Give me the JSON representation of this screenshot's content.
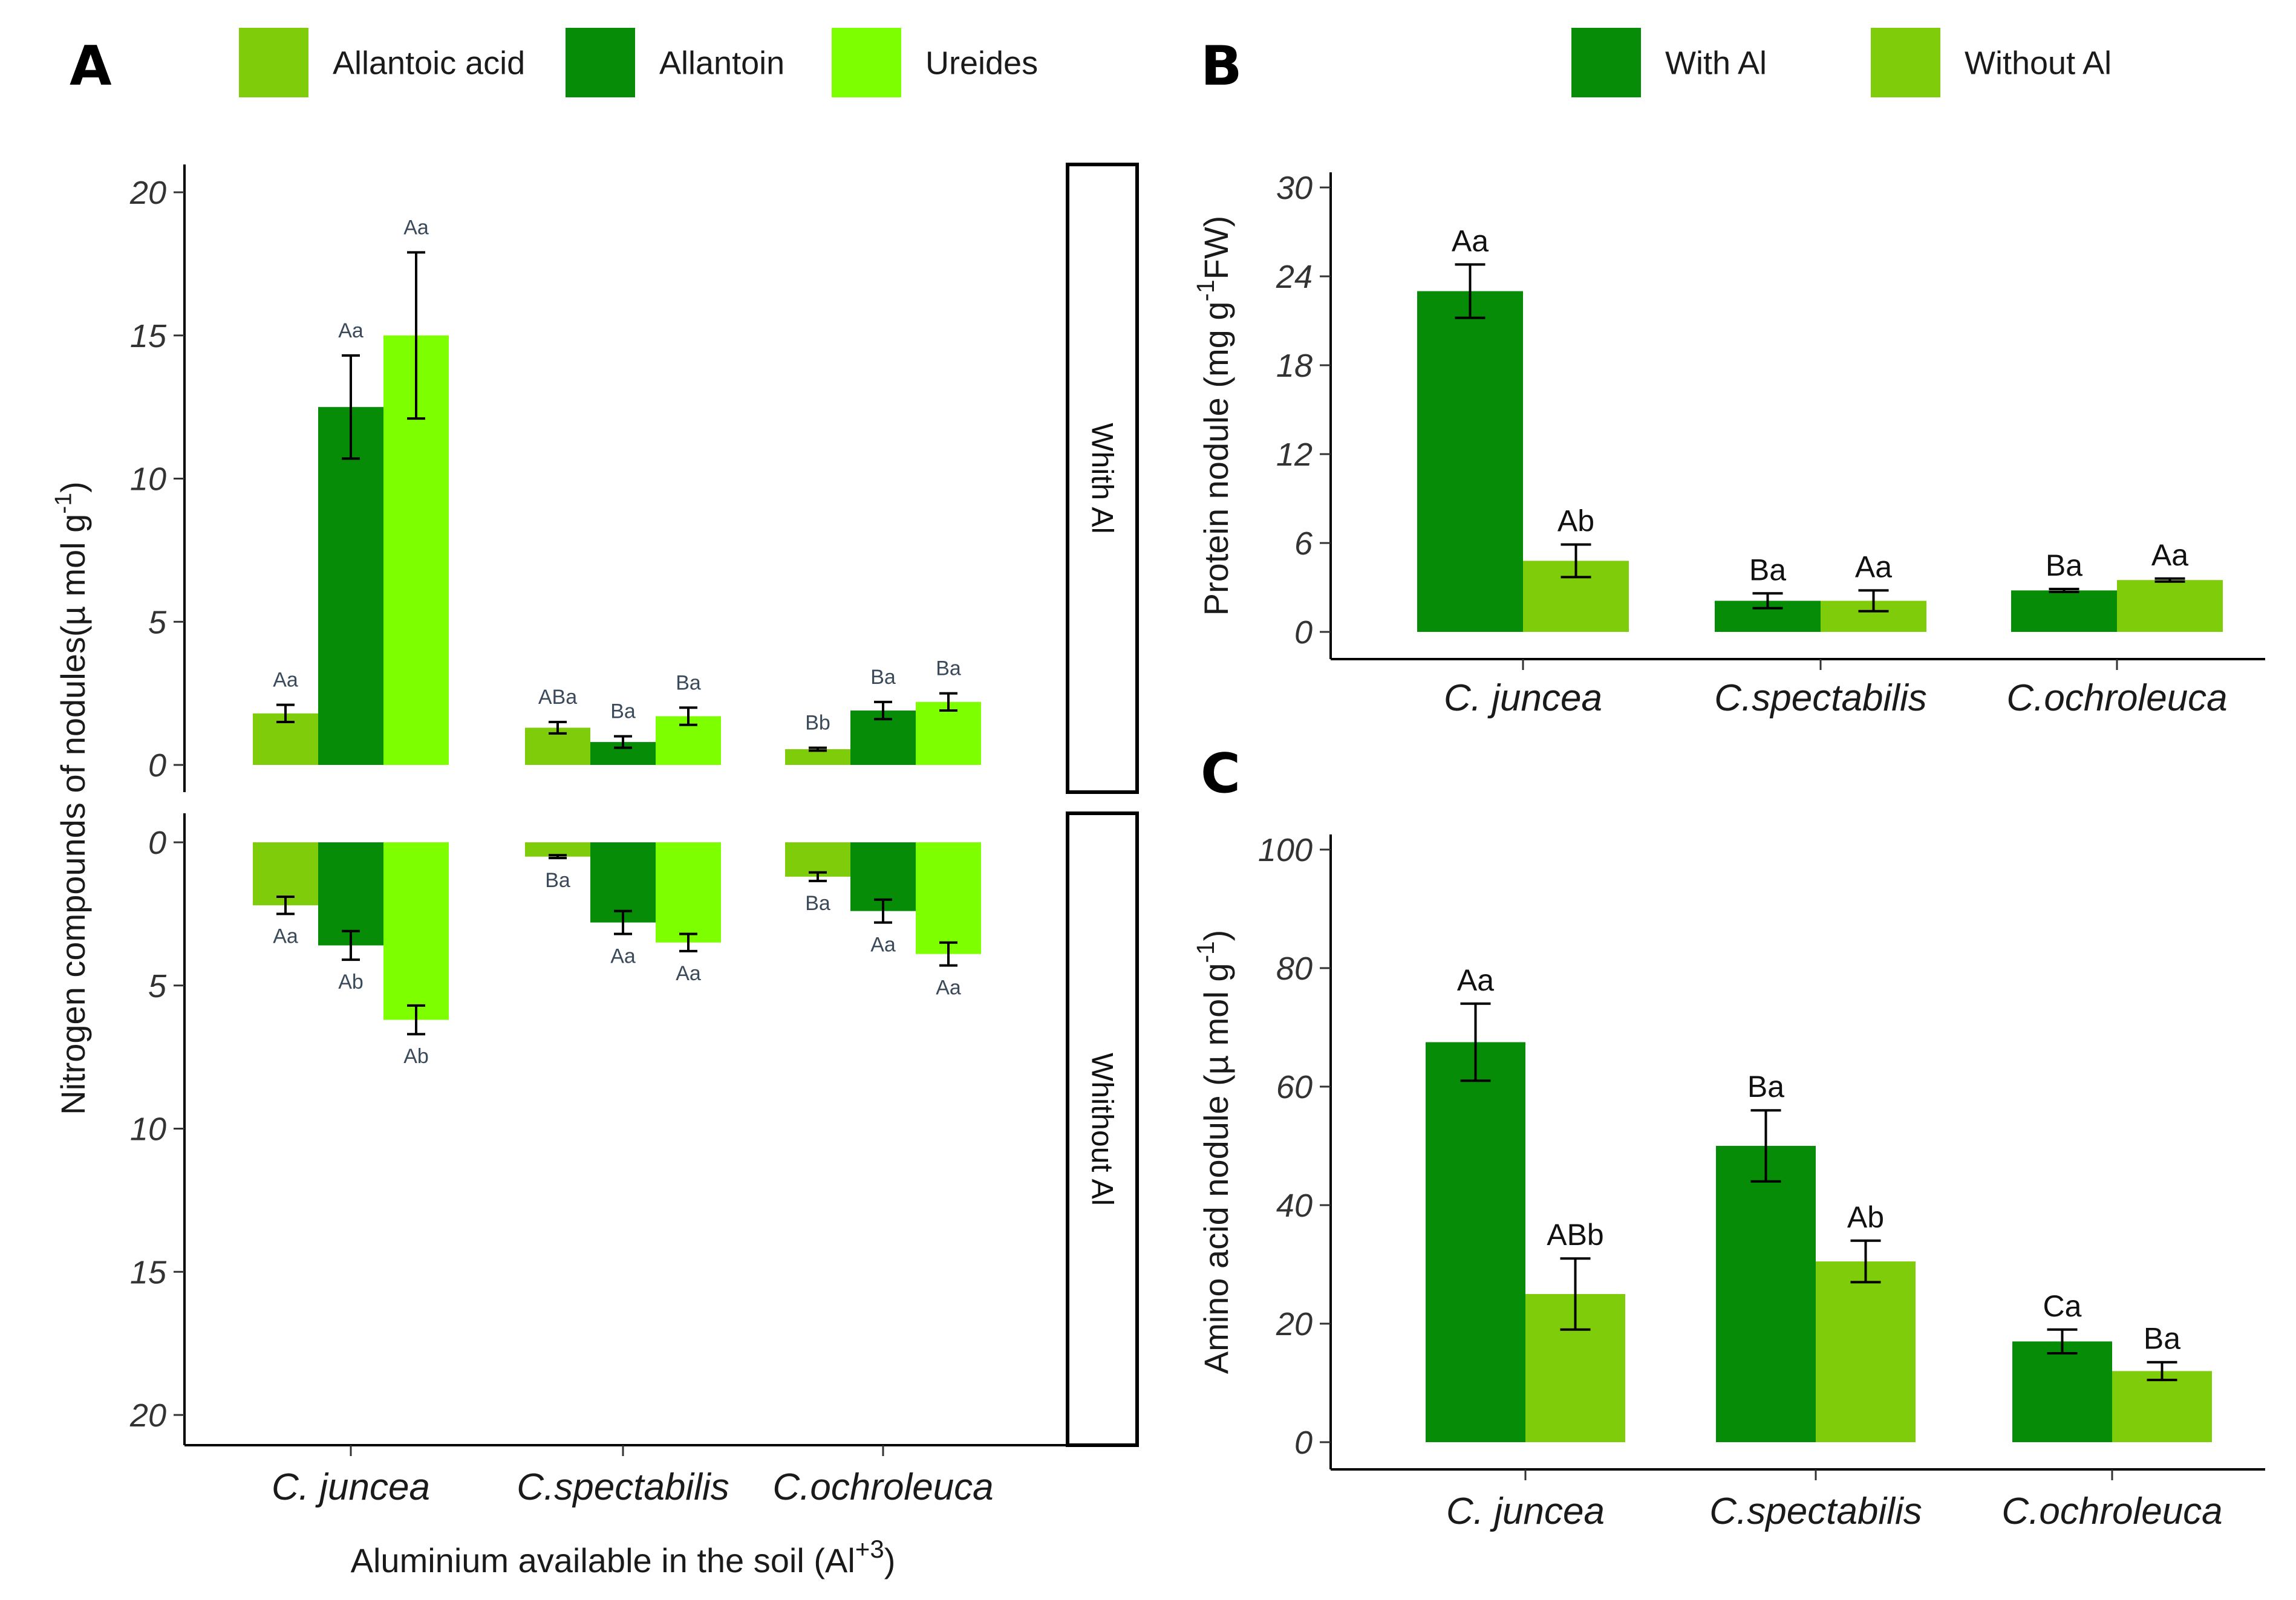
{
  "chart_data": [
    {
      "panel": "A",
      "type": "bar",
      "xlabel": "Aluminium available in the soil (Al",
      "xlabel_sup": "+3",
      "xlabel_close": ")",
      "ylabel": "Nitrogen compounds of nodules(µ mol g",
      "ylabel_sup": "-1",
      "ylabel_close": ")",
      "categories": [
        "C. juncea",
        "C.spectabilis",
        "C.ochroleuca"
      ],
      "series_names": [
        "Allantoic acid",
        "Allantoin",
        "Ureides"
      ],
      "colors": [
        "#7fcc0a",
        "#078c07",
        "#7dff00"
      ],
      "ylim": [
        0,
        20
      ],
      "yticks": [
        "0",
        "5",
        "10",
        "15",
        "20"
      ],
      "facets": [
        {
          "name": "Whith Al",
          "series": [
            {
              "name": "Allantoic acid",
              "values": [
                1.8,
                1.3,
                0.55
              ],
              "errors": [
                0.3,
                0.2,
                0.05
              ],
              "labels": [
                "Aa",
                "ABa",
                "Bb"
              ]
            },
            {
              "name": "Allantoin",
              "values": [
                12.5,
                0.8,
                1.9
              ],
              "errors": [
                1.8,
                0.2,
                0.3
              ],
              "labels": [
                "Aa",
                "Ba",
                "Ba"
              ]
            },
            {
              "name": "Ureides",
              "values": [
                15.0,
                1.7,
                2.2
              ],
              "errors": [
                2.9,
                0.3,
                0.3
              ],
              "labels": [
                "Aa",
                "Ba",
                "Ba"
              ]
            }
          ]
        },
        {
          "name": "Whithout Al",
          "series": [
            {
              "name": "Allantoic acid",
              "values": [
                2.2,
                0.5,
                1.2
              ],
              "errors": [
                0.3,
                0.05,
                0.15
              ],
              "labels": [
                "Aa",
                "Ba",
                "Ba"
              ]
            },
            {
              "name": "Allantoin",
              "values": [
                3.6,
                2.8,
                2.4
              ],
              "errors": [
                0.5,
                0.4,
                0.4
              ],
              "labels": [
                "Ab",
                "Aa",
                "Aa"
              ]
            },
            {
              "name": "Ureides",
              "values": [
                6.2,
                3.5,
                3.9
              ],
              "errors": [
                0.5,
                0.3,
                0.4
              ],
              "labels": [
                "Ab",
                "Aa",
                "Aa"
              ]
            }
          ]
        }
      ]
    },
    {
      "panel": "B",
      "type": "bar",
      "ylabel": "Protein nodule (mg g",
      "ylabel_sup": "-1",
      "ylabel_close": "FW)",
      "categories": [
        "C. juncea",
        "C.spectabilis",
        "C.ochroleuca"
      ],
      "series_names": [
        "With Al",
        "Without Al"
      ],
      "colors": [
        "#078c07",
        "#7fcc0a"
      ],
      "ylim": [
        0,
        30
      ],
      "yticks": [
        "0",
        "6",
        "12",
        "18",
        "24",
        "30"
      ],
      "series": [
        {
          "name": "With Al",
          "values": [
            23.0,
            2.1,
            2.8
          ],
          "errors": [
            1.8,
            0.5,
            0.1
          ],
          "labels": [
            "Aa",
            "Ba",
            "Ba"
          ]
        },
        {
          "name": "Without Al",
          "values": [
            4.8,
            2.1,
            3.5
          ],
          "errors": [
            1.1,
            0.7,
            0.1
          ],
          "labels": [
            "Ab",
            "Aa",
            "Aa"
          ]
        }
      ]
    },
    {
      "panel": "C",
      "type": "bar",
      "ylabel": "Amino acid nodule (µ mol g",
      "ylabel_sup": "-1",
      "ylabel_close": ")",
      "categories": [
        "C. juncea",
        "C.spectabilis",
        "C.ochroleuca"
      ],
      "series_names": [
        "With Al",
        "Without Al"
      ],
      "colors": [
        "#078c07",
        "#7fcc0a"
      ],
      "ylim": [
        0,
        100
      ],
      "yticks": [
        "0",
        "20",
        "40",
        "60",
        "80",
        "100"
      ],
      "series": [
        {
          "name": "With Al",
          "values": [
            67.5,
            50.0,
            17.0
          ],
          "errors": [
            6.5,
            6.0,
            2.0
          ],
          "labels": [
            "Aa",
            "Ba",
            "Ca"
          ]
        },
        {
          "name": "Without Al",
          "values": [
            25.0,
            30.5,
            12.0
          ],
          "errors": [
            6.0,
            3.5,
            1.5
          ],
          "labels": [
            "ABb",
            "Ab",
            "Ba"
          ]
        }
      ]
    }
  ]
}
